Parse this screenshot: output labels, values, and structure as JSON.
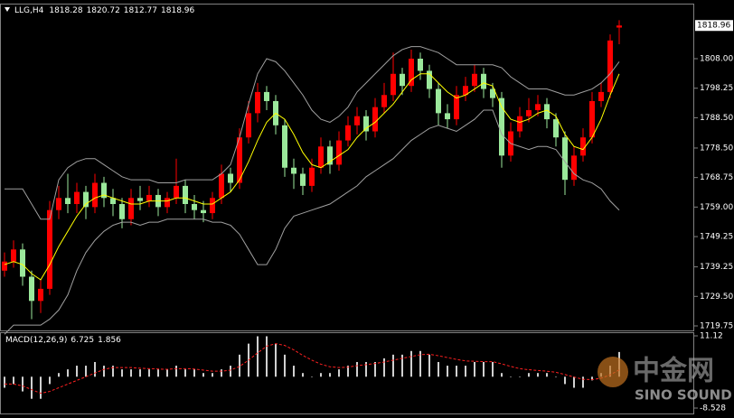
{
  "chart_data": [
    {
      "type": "candlestick",
      "title": "LLG,H4",
      "open": [
        1738,
        1741,
        1745,
        1736,
        1728,
        1732,
        1758,
        1762,
        1760,
        1764,
        1759,
        1767,
        1762,
        1760,
        1755,
        1762,
        1761,
        1763,
        1759,
        1762,
        1766,
        1760,
        1758,
        1757,
        1762,
        1770,
        1767,
        1782,
        1790,
        1797,
        1794,
        1786,
        1772,
        1770,
        1766,
        1772,
        1779,
        1773,
        1781,
        1786,
        1789,
        1784,
        1792,
        1796,
        1803,
        1799,
        1808,
        1804,
        1798,
        1790,
        1788,
        1796,
        1799,
        1803,
        1798,
        1795,
        1776,
        1784,
        1789,
        1791,
        1793,
        1788,
        1782,
        1768,
        1776,
        1782,
        1794,
        1797,
        1818.28
      ],
      "high": [
        1744,
        1748,
        1747,
        1738,
        1735,
        1761,
        1766,
        1770,
        1767,
        1766,
        1770,
        1769,
        1765,
        1762,
        1765,
        1766,
        1766,
        1765,
        1764,
        1775,
        1768,
        1763,
        1761,
        1764,
        1773,
        1772,
        1785,
        1794,
        1800,
        1799,
        1796,
        1788,
        1775,
        1772,
        1775,
        1782,
        1781,
        1784,
        1789,
        1792,
        1791,
        1795,
        1800,
        1810,
        1805,
        1811,
        1810,
        1806,
        1800,
        1793,
        1799,
        1802,
        1806,
        1805,
        1800,
        1797,
        1787,
        1792,
        1795,
        1796,
        1795,
        1790,
        1784,
        1779,
        1785,
        1797,
        1800,
        1816,
        1820.72
      ],
      "low": [
        1736,
        1739,
        1733,
        1722,
        1724,
        1730,
        1755,
        1757,
        1757,
        1755,
        1757,
        1759,
        1756,
        1752,
        1753,
        1758,
        1759,
        1756,
        1757,
        1760,
        1757,
        1755,
        1754,
        1755,
        1760,
        1764,
        1765,
        1780,
        1787,
        1791,
        1783,
        1769,
        1765,
        1763,
        1764,
        1770,
        1770,
        1771,
        1779,
        1783,
        1781,
        1782,
        1790,
        1794,
        1796,
        1797,
        1801,
        1795,
        1786,
        1785,
        1786,
        1794,
        1797,
        1795,
        1792,
        1772,
        1774,
        1782,
        1787,
        1789,
        1785,
        1779,
        1763,
        1766,
        1774,
        1780,
        1792,
        1795,
        1812.77
      ],
      "close": [
        1741,
        1745,
        1736,
        1728,
        1732,
        1758,
        1762,
        1760,
        1764,
        1759,
        1767,
        1762,
        1760,
        1755,
        1762,
        1761,
        1763,
        1759,
        1762,
        1766,
        1760,
        1758,
        1757,
        1762,
        1770,
        1767,
        1782,
        1790,
        1797,
        1794,
        1786,
        1772,
        1770,
        1766,
        1772,
        1779,
        1773,
        1781,
        1786,
        1789,
        1784,
        1792,
        1796,
        1803,
        1799,
        1808,
        1804,
        1798,
        1790,
        1788,
        1796,
        1799,
        1803,
        1798,
        1795,
        1776,
        1784,
        1789,
        1791,
        1793,
        1788,
        1782,
        1768,
        1776,
        1782,
        1794,
        1797,
        1814,
        1818.96
      ],
      "ma": [
        1740,
        1741,
        1740,
        1737,
        1735,
        1740,
        1746,
        1751,
        1756,
        1760,
        1762,
        1763,
        1762,
        1761,
        1760,
        1760,
        1761,
        1761,
        1761,
        1762,
        1762,
        1761,
        1760,
        1760,
        1762,
        1764,
        1768,
        1774,
        1781,
        1787,
        1790,
        1788,
        1783,
        1777,
        1773,
        1772,
        1774,
        1776,
        1778,
        1782,
        1785,
        1787,
        1790,
        1793,
        1797,
        1801,
        1803,
        1803,
        1800,
        1797,
        1795,
        1796,
        1798,
        1800,
        1799,
        1792,
        1788,
        1787,
        1788,
        1790,
        1791,
        1789,
        1783,
        1779,
        1778,
        1782,
        1788,
        1796,
        1803
      ],
      "upper": [
        1765,
        1765,
        1765,
        1760,
        1755,
        1755,
        1768,
        1772,
        1774,
        1775,
        1775,
        1773,
        1771,
        1769,
        1768,
        1768,
        1768,
        1767,
        1767,
        1767,
        1768,
        1768,
        1768,
        1768,
        1770,
        1773,
        1782,
        1793,
        1803,
        1808,
        1807,
        1804,
        1800,
        1796,
        1791,
        1788,
        1787,
        1789,
        1792,
        1797,
        1800,
        1803,
        1806,
        1809,
        1811,
        1812,
        1812,
        1811,
        1810,
        1808,
        1806,
        1806,
        1806,
        1806,
        1806,
        1805,
        1802,
        1800,
        1798,
        1798,
        1798,
        1797,
        1796,
        1796,
        1797,
        1798,
        1800,
        1803,
        1807
      ],
      "lower": [
        1717,
        1720,
        1720,
        1720,
        1720,
        1722,
        1725,
        1730,
        1738,
        1744,
        1748,
        1751,
        1753,
        1754,
        1754,
        1753,
        1754,
        1754,
        1755,
        1755,
        1755,
        1755,
        1755,
        1754,
        1754,
        1753,
        1750,
        1745,
        1740,
        1740,
        1745,
        1752,
        1756,
        1757,
        1758,
        1759,
        1760,
        1762,
        1764,
        1766,
        1769,
        1771,
        1773,
        1775,
        1778,
        1781,
        1783,
        1785,
        1786,
        1785,
        1784,
        1786,
        1788,
        1791,
        1791,
        1783,
        1780,
        1779,
        1778,
        1779,
        1779,
        1778,
        1774,
        1770,
        1768,
        1767,
        1765,
        1761,
        1758
      ],
      "up_color": "#ff0000",
      "down_color": "#9be89b",
      "ma_color": "#ffff00",
      "band_color": "#a0a0a0",
      "ylim": [
        1718.26,
        1826.19
      ],
      "yticks": [
        {
          "value": 1808,
          "label": "1808.00"
        },
        1798.25,
        {
          "value": 1788.5,
          "label": "1788.50"
        },
        {
          "value": 1778.5,
          "label": "1778.50"
        },
        1768.75,
        {
          "value": 1759,
          "label": "1759.00"
        },
        1749.25,
        1739.25,
        {
          "value": 1729.5,
          "label": "1729.50"
        },
        1719.75
      ]
    },
    {
      "type": "macd",
      "title": "MACD(12,26,9)",
      "histogram": [
        -3,
        -2,
        -4,
        -6,
        -6,
        -2,
        1,
        2,
        3,
        3,
        4,
        3,
        3,
        2,
        2,
        2,
        2,
        2,
        2,
        3,
        2,
        2,
        1,
        1,
        2,
        3,
        6,
        9,
        11,
        11,
        9,
        6,
        3,
        1,
        0,
        1,
        1,
        2,
        3,
        4,
        4,
        4,
        5,
        6,
        6,
        7,
        7,
        6,
        4,
        3,
        3,
        3,
        4,
        4,
        4,
        1,
        0,
        0,
        1,
        1,
        1,
        0,
        -2,
        -3,
        -3,
        -1,
        1,
        3,
        6.725
      ],
      "signal": [
        -2,
        -2,
        -2.5,
        -3.5,
        -4.5,
        -4,
        -3,
        -2,
        -1,
        0,
        1,
        2,
        2.5,
        2.5,
        2.5,
        2.3,
        2.2,
        2.1,
        2,
        2.2,
        2.2,
        2.1,
        1.8,
        1.5,
        1.5,
        1.8,
        2.8,
        4.5,
        6.5,
        8.3,
        9,
        8.5,
        7.3,
        5.8,
        4.5,
        3.4,
        2.7,
        2.5,
        2.6,
        3,
        3.3,
        3.6,
        4,
        4.5,
        5,
        5.5,
        6,
        6.1,
        5.7,
        5.2,
        4.7,
        4.3,
        4.2,
        4.1,
        4.1,
        3.5,
        2.8,
        2.2,
        1.9,
        1.7,
        1.5,
        1.2,
        0.6,
        -0.1,
        -0.7,
        -0.8,
        -0.4,
        0.5,
        1.856
      ],
      "histogram_color": "#d0d0d0",
      "signal_color": "#ff2020",
      "ylim": [
        -10.0,
        12.1
      ],
      "yticks": [
        11.12,
        -8.528
      ]
    }
  ],
  "watermark": {
    "title": "中金网",
    "subtitle": "SINO SOUND"
  }
}
